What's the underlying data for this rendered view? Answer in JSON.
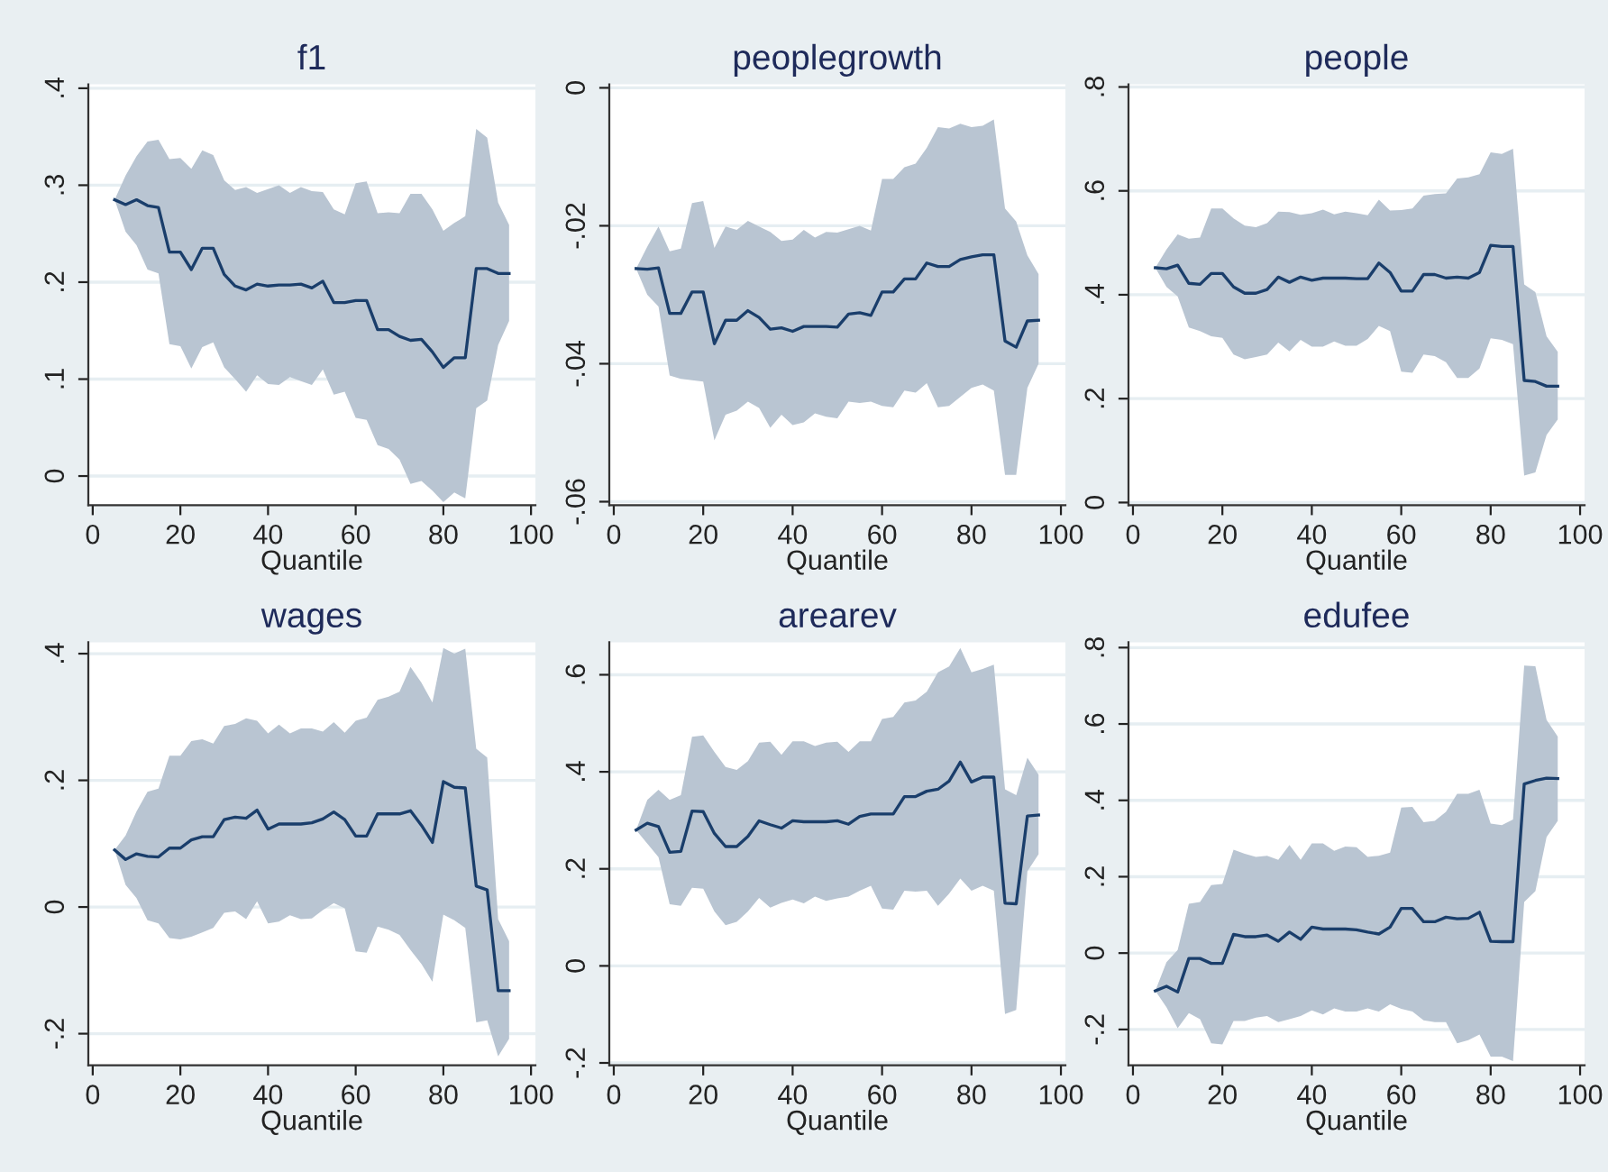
{
  "chart_data": [
    {
      "type": "line",
      "title": "f1",
      "xlabel": "Quantile",
      "xlim": [
        -1,
        101
      ],
      "xticks": [
        0,
        20,
        40,
        60,
        80,
        100
      ],
      "ylim": [
        -0.03,
        0.404
      ],
      "yticks": [
        {
          "value": 0,
          "label": "0"
        },
        {
          "value": 0.1,
          "label": ".1"
        },
        {
          "value": 0.2,
          "label": ".2"
        },
        {
          "value": 0.3,
          "label": ".3"
        },
        {
          "value": 0.4,
          "label": ".4"
        }
      ],
      "grid": "y",
      "x": [
        5,
        7.5,
        10,
        12.5,
        15,
        17.5,
        20,
        22.5,
        25,
        27.5,
        30,
        32.5,
        35,
        37.5,
        40,
        42.5,
        45,
        47.5,
        50,
        52.5,
        55,
        57.5,
        60,
        62.5,
        65,
        67.5,
        70,
        72.5,
        75,
        77.5,
        80,
        82.5,
        85,
        87.5,
        90,
        92.5,
        95
      ],
      "series": [
        {
          "color": "#1a3e6b",
          "values": [
            0.285,
            0.28,
            0.285,
            0.279,
            0.277,
            0.231,
            0.231,
            0.213,
            0.235,
            0.235,
            0.208,
            0.196,
            0.192,
            0.198,
            0.196,
            0.197,
            0.197,
            0.198,
            0.194,
            0.201,
            0.179,
            0.179,
            0.181,
            0.181,
            0.151,
            0.151,
            0.144,
            0.14,
            0.141,
            0.128,
            0.112,
            0.122,
            0.122,
            0.214,
            0.214,
            0.209,
            0.209
          ],
          "upper": [
            0.285,
            0.31,
            0.33,
            0.345,
            0.347,
            0.327,
            0.328,
            0.317,
            0.336,
            0.331,
            0.305,
            0.295,
            0.298,
            0.292,
            0.296,
            0.3,
            0.292,
            0.298,
            0.294,
            0.293,
            0.275,
            0.27,
            0.302,
            0.304,
            0.271,
            0.272,
            0.271,
            0.291,
            0.291,
            0.275,
            0.253,
            0.261,
            0.268,
            0.358,
            0.349,
            0.282,
            0.259
          ],
          "lower": [
            0.285,
            0.252,
            0.238,
            0.213,
            0.209,
            0.136,
            0.134,
            0.111,
            0.133,
            0.138,
            0.112,
            0.1,
            0.087,
            0.104,
            0.095,
            0.094,
            0.102,
            0.098,
            0.094,
            0.11,
            0.084,
            0.087,
            0.06,
            0.058,
            0.032,
            0.028,
            0.017,
            -0.008,
            -0.005,
            -0.015,
            -0.027,
            -0.017,
            -0.023,
            0.07,
            0.078,
            0.135,
            0.16
          ]
        }
      ]
    },
    {
      "type": "line",
      "title": "peoplegrowth",
      "xlabel": "Quantile",
      "xlim": [
        -1,
        101
      ],
      "xticks": [
        0,
        20,
        40,
        60,
        80,
        100
      ],
      "ylim": [
        -0.0605,
        0.0005
      ],
      "yticks": [
        {
          "value": -0.06,
          "label": "-.06"
        },
        {
          "value": -0.04,
          "label": "-.04"
        },
        {
          "value": -0.02,
          "label": "-.02"
        },
        {
          "value": 0,
          "label": "0"
        }
      ],
      "grid": "y",
      "x": [
        5,
        7.5,
        10,
        12.5,
        15,
        17.5,
        20,
        22.5,
        25,
        27.5,
        30,
        32.5,
        35,
        37.5,
        40,
        42.5,
        45,
        47.5,
        50,
        52.5,
        55,
        57.5,
        60,
        62.5,
        65,
        67.5,
        70,
        72.5,
        75,
        77.5,
        80,
        82.5,
        85,
        87.5,
        90,
        92.5,
        95
      ],
      "series": [
        {
          "color": "#1a3e6b",
          "values": [
            -0.0262,
            -0.0263,
            -0.0261,
            -0.0327,
            -0.0327,
            -0.0296,
            -0.0296,
            -0.0371,
            -0.0337,
            -0.0337,
            -0.0323,
            -0.0333,
            -0.035,
            -0.0348,
            -0.0353,
            -0.0346,
            -0.0346,
            -0.0346,
            -0.0347,
            -0.0328,
            -0.0326,
            -0.033,
            -0.0296,
            -0.0296,
            -0.0277,
            -0.0277,
            -0.0254,
            -0.0259,
            -0.0259,
            -0.0249,
            -0.0245,
            -0.0242,
            -0.0242,
            -0.0367,
            -0.0376,
            -0.0338,
            -0.0337
          ],
          "upper": [
            -0.0262,
            -0.023,
            -0.0201,
            -0.0237,
            -0.0233,
            -0.0167,
            -0.0164,
            -0.0232,
            -0.0201,
            -0.0206,
            -0.0193,
            -0.0201,
            -0.0209,
            -0.0222,
            -0.022,
            -0.0206,
            -0.0217,
            -0.0209,
            -0.021,
            -0.0205,
            -0.02,
            -0.0207,
            -0.0132,
            -0.0132,
            -0.0115,
            -0.011,
            -0.0087,
            -0.0057,
            -0.0059,
            -0.0052,
            -0.0057,
            -0.0055,
            -0.0046,
            -0.0175,
            -0.0194,
            -0.0243,
            -0.027
          ],
          "lower": [
            -0.0262,
            -0.03,
            -0.0317,
            -0.0417,
            -0.0422,
            -0.0424,
            -0.0426,
            -0.0511,
            -0.0474,
            -0.0468,
            -0.0455,
            -0.0464,
            -0.0493,
            -0.0474,
            -0.0489,
            -0.0485,
            -0.0472,
            -0.0477,
            -0.0479,
            -0.0455,
            -0.0457,
            -0.0455,
            -0.0461,
            -0.0463,
            -0.0439,
            -0.0442,
            -0.0428,
            -0.0463,
            -0.0461,
            -0.0448,
            -0.0435,
            -0.043,
            -0.0439,
            -0.0561,
            -0.0561,
            -0.0435,
            -0.04
          ]
        }
      ]
    },
    {
      "type": "line",
      "title": "people",
      "xlabel": "Quantile",
      "xlim": [
        -1,
        101
      ],
      "xticks": [
        0,
        20,
        40,
        60,
        80,
        100
      ],
      "ylim": [
        -0.005,
        0.805
      ],
      "yticks": [
        {
          "value": 0,
          "label": "0"
        },
        {
          "value": 0.2,
          "label": ".2"
        },
        {
          "value": 0.4,
          "label": ".4"
        },
        {
          "value": 0.6,
          "label": ".6"
        },
        {
          "value": 0.8,
          "label": ".8"
        }
      ],
      "grid": "y",
      "x": [
        5,
        7.5,
        10,
        12.5,
        15,
        17.5,
        20,
        22.5,
        25,
        27.5,
        30,
        32.5,
        35,
        37.5,
        40,
        42.5,
        45,
        47.5,
        50,
        52.5,
        55,
        57.5,
        60,
        62.5,
        65,
        67.5,
        70,
        72.5,
        75,
        77.5,
        80,
        82.5,
        85,
        87.5,
        90,
        92.5,
        95
      ],
      "series": [
        {
          "color": "#1a3e6b",
          "values": [
            0.452,
            0.45,
            0.457,
            0.422,
            0.42,
            0.441,
            0.441,
            0.415,
            0.403,
            0.403,
            0.41,
            0.434,
            0.424,
            0.434,
            0.428,
            0.432,
            0.432,
            0.432,
            0.431,
            0.431,
            0.461,
            0.443,
            0.407,
            0.407,
            0.439,
            0.439,
            0.432,
            0.434,
            0.432,
            0.443,
            0.495,
            0.493,
            0.493,
            0.235,
            0.233,
            0.224,
            0.224
          ],
          "upper": [
            0.452,
            0.487,
            0.516,
            0.508,
            0.51,
            0.566,
            0.566,
            0.547,
            0.533,
            0.53,
            0.538,
            0.56,
            0.559,
            0.554,
            0.557,
            0.564,
            0.555,
            0.56,
            0.557,
            0.553,
            0.583,
            0.562,
            0.563,
            0.566,
            0.591,
            0.594,
            0.595,
            0.624,
            0.626,
            0.632,
            0.674,
            0.671,
            0.681,
            0.42,
            0.405,
            0.32,
            0.29
          ],
          "lower": [
            0.452,
            0.415,
            0.397,
            0.337,
            0.33,
            0.32,
            0.317,
            0.285,
            0.276,
            0.28,
            0.285,
            0.308,
            0.291,
            0.313,
            0.3,
            0.3,
            0.31,
            0.302,
            0.302,
            0.315,
            0.34,
            0.33,
            0.252,
            0.25,
            0.285,
            0.282,
            0.27,
            0.24,
            0.24,
            0.258,
            0.316,
            0.313,
            0.305,
            0.052,
            0.058,
            0.13,
            0.16
          ]
        }
      ]
    },
    {
      "type": "line",
      "title": "wages",
      "xlabel": "Quantile",
      "xlim": [
        -1,
        101
      ],
      "xticks": [
        0,
        20,
        40,
        60,
        80,
        100
      ],
      "ylim": [
        -0.25,
        0.418
      ],
      "yticks": [
        {
          "value": -0.2,
          "label": "-.2"
        },
        {
          "value": 0,
          "label": "0"
        },
        {
          "value": 0.2,
          "label": ".2"
        },
        {
          "value": 0.4,
          "label": ".4"
        }
      ],
      "grid": "y",
      "x": [
        5,
        7.5,
        10,
        12.5,
        15,
        17.5,
        20,
        22.5,
        25,
        27.5,
        30,
        32.5,
        35,
        37.5,
        40,
        42.5,
        45,
        47.5,
        50,
        52.5,
        55,
        57.5,
        60,
        62.5,
        65,
        67.5,
        70,
        72.5,
        75,
        77.5,
        80,
        82.5,
        85,
        87.5,
        90,
        92.5,
        95
      ],
      "series": [
        {
          "color": "#1a3e6b",
          "values": [
            0.09,
            0.075,
            0.084,
            0.08,
            0.079,
            0.093,
            0.093,
            0.106,
            0.111,
            0.111,
            0.138,
            0.142,
            0.14,
            0.153,
            0.123,
            0.131,
            0.131,
            0.131,
            0.133,
            0.139,
            0.15,
            0.138,
            0.112,
            0.112,
            0.147,
            0.147,
            0.147,
            0.152,
            0.129,
            0.102,
            0.198,
            0.189,
            0.188,
            0.033,
            0.027,
            -0.132,
            -0.132
          ],
          "upper": [
            0.09,
            0.113,
            0.151,
            0.182,
            0.187,
            0.239,
            0.239,
            0.262,
            0.265,
            0.258,
            0.286,
            0.289,
            0.298,
            0.294,
            0.274,
            0.288,
            0.274,
            0.282,
            0.282,
            0.277,
            0.292,
            0.275,
            0.294,
            0.299,
            0.327,
            0.332,
            0.34,
            0.379,
            0.354,
            0.323,
            0.409,
            0.4,
            0.408,
            0.25,
            0.236,
            -0.019,
            -0.054
          ],
          "lower": [
            0.09,
            0.035,
            0.014,
            -0.021,
            -0.026,
            -0.049,
            -0.051,
            -0.047,
            -0.04,
            -0.033,
            -0.009,
            -0.007,
            -0.019,
            0.009,
            -0.026,
            -0.023,
            -0.013,
            -0.019,
            -0.018,
            -0.005,
            0.006,
            -0.002,
            -0.07,
            -0.072,
            -0.031,
            -0.036,
            -0.044,
            -0.068,
            -0.09,
            -0.118,
            -0.012,
            -0.021,
            -0.033,
            -0.182,
            -0.179,
            -0.236,
            -0.208
          ]
        }
      ]
    },
    {
      "type": "line",
      "title": "arearev",
      "xlabel": "Quantile",
      "xlim": [
        -1,
        101
      ],
      "xticks": [
        0,
        20,
        40,
        60,
        80,
        100
      ],
      "ylim": [
        -0.205,
        0.667
      ],
      "yticks": [
        {
          "value": -0.2,
          "label": "-.2"
        },
        {
          "value": 0,
          "label": "0"
        },
        {
          "value": 0.2,
          "label": ".2"
        },
        {
          "value": 0.4,
          "label": ".4"
        },
        {
          "value": 0.6,
          "label": ".6"
        }
      ],
      "grid": "y",
      "x": [
        5,
        7.5,
        10,
        12.5,
        15,
        17.5,
        20,
        22.5,
        25,
        27.5,
        30,
        32.5,
        35,
        37.5,
        40,
        42.5,
        45,
        47.5,
        50,
        52.5,
        55,
        57.5,
        60,
        62.5,
        65,
        67.5,
        70,
        72.5,
        75,
        77.5,
        80,
        82.5,
        85,
        87.5,
        90,
        92.5,
        95
      ],
      "series": [
        {
          "color": "#1a3e6b",
          "values": [
            0.28,
            0.294,
            0.287,
            0.234,
            0.236,
            0.319,
            0.318,
            0.273,
            0.246,
            0.246,
            0.267,
            0.299,
            0.291,
            0.284,
            0.299,
            0.297,
            0.297,
            0.297,
            0.299,
            0.292,
            0.308,
            0.313,
            0.313,
            0.313,
            0.349,
            0.349,
            0.36,
            0.364,
            0.381,
            0.42,
            0.379,
            0.389,
            0.389,
            0.129,
            0.128,
            0.309,
            0.311
          ],
          "upper": [
            0.28,
            0.342,
            0.363,
            0.342,
            0.352,
            0.472,
            0.475,
            0.441,
            0.41,
            0.404,
            0.422,
            0.46,
            0.462,
            0.435,
            0.463,
            0.463,
            0.453,
            0.46,
            0.462,
            0.441,
            0.463,
            0.463,
            0.509,
            0.513,
            0.543,
            0.547,
            0.565,
            0.605,
            0.617,
            0.655,
            0.605,
            0.612,
            0.621,
            0.364,
            0.352,
            0.429,
            0.394
          ],
          "lower": [
            0.28,
            0.252,
            0.224,
            0.127,
            0.124,
            0.161,
            0.159,
            0.112,
            0.084,
            0.091,
            0.112,
            0.14,
            0.12,
            0.13,
            0.137,
            0.129,
            0.143,
            0.134,
            0.139,
            0.143,
            0.155,
            0.165,
            0.118,
            0.116,
            0.155,
            0.153,
            0.155,
            0.124,
            0.149,
            0.18,
            0.155,
            0.165,
            0.155,
            -0.099,
            -0.091,
            0.195,
            0.23
          ]
        }
      ]
    },
    {
      "type": "line",
      "title": "edufee",
      "xlabel": "Quantile",
      "xlim": [
        -1,
        101
      ],
      "xticks": [
        0,
        20,
        40,
        60,
        80,
        100
      ],
      "ylim": [
        -0.294,
        0.814
      ],
      "yticks": [
        {
          "value": -0.2,
          "label": "-.2"
        },
        {
          "value": 0,
          "label": "0"
        },
        {
          "value": 0.2,
          "label": ".2"
        },
        {
          "value": 0.4,
          "label": ".4"
        },
        {
          "value": 0.6,
          "label": ".6"
        },
        {
          "value": 0.8,
          "label": ".8"
        }
      ],
      "grid": "y",
      "x": [
        5,
        7.5,
        10,
        12.5,
        15,
        17.5,
        20,
        22.5,
        25,
        27.5,
        30,
        32.5,
        35,
        37.5,
        40,
        42.5,
        45,
        47.5,
        50,
        52.5,
        55,
        57.5,
        60,
        62.5,
        65,
        67.5,
        70,
        72.5,
        75,
        77.5,
        80,
        82.5,
        85,
        87.5,
        90,
        92.5,
        95
      ],
      "series": [
        {
          "color": "#1a3e6b",
          "values": [
            -0.099,
            -0.087,
            -0.102,
            -0.014,
            -0.014,
            -0.027,
            -0.027,
            0.049,
            0.043,
            0.043,
            0.047,
            0.031,
            0.055,
            0.036,
            0.068,
            0.063,
            0.063,
            0.063,
            0.061,
            0.055,
            0.05,
            0.068,
            0.117,
            0.117,
            0.082,
            0.082,
            0.094,
            0.09,
            0.091,
            0.107,
            0.031,
            0.03,
            0.03,
            0.443,
            0.452,
            0.458,
            0.457
          ],
          "upper": [
            -0.099,
            -0.024,
            0.008,
            0.129,
            0.134,
            0.178,
            0.181,
            0.271,
            0.26,
            0.252,
            0.255,
            0.244,
            0.283,
            0.244,
            0.287,
            0.287,
            0.268,
            0.279,
            0.277,
            0.252,
            0.255,
            0.263,
            0.381,
            0.383,
            0.343,
            0.346,
            0.37,
            0.417,
            0.417,
            0.428,
            0.339,
            0.335,
            0.35,
            0.753,
            0.751,
            0.611,
            0.567
          ],
          "lower": [
            -0.099,
            -0.142,
            -0.197,
            -0.157,
            -0.173,
            -0.236,
            -0.239,
            -0.178,
            -0.178,
            -0.169,
            -0.165,
            -0.181,
            -0.173,
            -0.165,
            -0.15,
            -0.161,
            -0.145,
            -0.153,
            -0.153,
            -0.145,
            -0.153,
            -0.134,
            -0.146,
            -0.153,
            -0.176,
            -0.181,
            -0.181,
            -0.236,
            -0.228,
            -0.213,
            -0.271,
            -0.271,
            -0.283,
            0.134,
            0.162,
            0.304,
            0.346
          ]
        }
      ]
    }
  ]
}
